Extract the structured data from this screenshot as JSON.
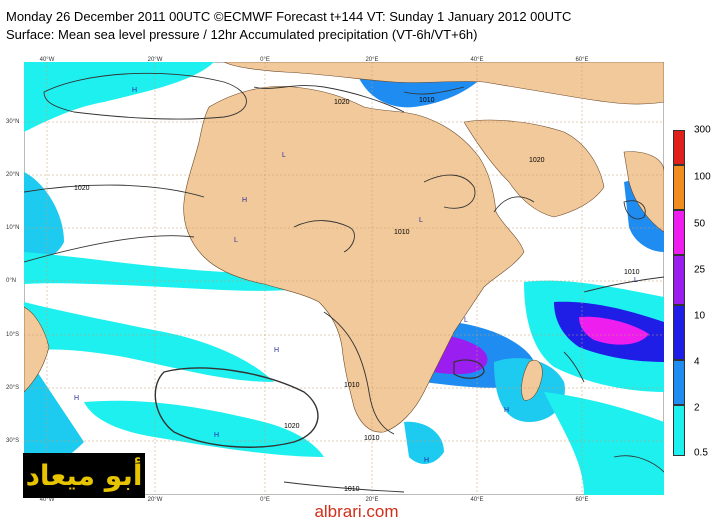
{
  "header": {
    "line1": "Monday 26 December 2011 00UTC ©ECMWF Forecast t+144 VT: Sunday 1 January 2012 00UTC",
    "line2": "Surface: Mean sea level pressure / 12hr Accumulated precipitation (VT-6h/VT+6h)"
  },
  "map": {
    "lon_labels_top": [
      "40°W",
      "20°W",
      "0°E",
      "20°E",
      "40°E",
      "60°E"
    ],
    "lon_labels_bottom": [
      "40°W",
      "20°W",
      "0°E",
      "20°E",
      "40°E",
      "60°E"
    ],
    "lat_labels": [
      "30°N",
      "20°N",
      "10°N",
      "0°N",
      "10°S",
      "20°S",
      "30°S"
    ],
    "isobar_labels": [
      "1020",
      "1020",
      "1010",
      "1020",
      "1010",
      "1010",
      "1010",
      "1010",
      "1020",
      "1010"
    ],
    "pressure_centers": [
      "H",
      "L",
      "L",
      "H",
      "H",
      "L",
      "L",
      "H",
      "H",
      "H",
      "L",
      "H"
    ],
    "colors": {
      "land": "#f2c99a",
      "ocean": "#ffffff",
      "grid": "#c79a6b",
      "isobar": "#333333"
    }
  },
  "legend": {
    "labels": [
      "300",
      "100",
      "50",
      "25",
      "10",
      "4",
      "2",
      "0.5"
    ],
    "colors": [
      "#ffffff",
      "#e0201b",
      "#f08d1e",
      "#ee1eee",
      "#9a1ef0",
      "#1e1ee6",
      "#1e8cf0",
      "#1ecbf0",
      "#1ef0f0"
    ]
  },
  "watermark": "أبو ميعاد",
  "site": "albrari.com"
}
